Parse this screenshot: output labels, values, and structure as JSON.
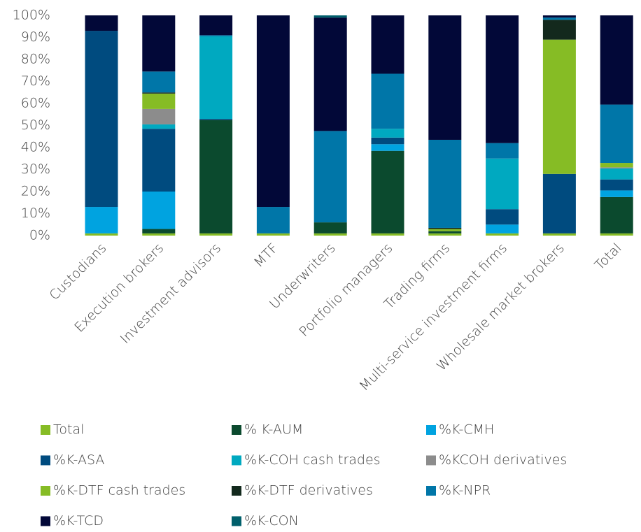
{
  "chart_data": {
    "type": "stacked_bar",
    "categories": [
      "Custodians",
      "Execution brokers",
      "Investment advisors",
      "MTF",
      "Underwriters",
      "Portfolio managers",
      "Trading firms",
      "Multi-service investment firms",
      "Wholesale market brokers",
      "Total"
    ],
    "series": [
      {
        "name": "Total",
        "color": "#86bc25",
        "values": [
          1,
          1,
          1,
          1,
          1,
          1,
          1,
          1,
          1,
          1
        ]
      },
      {
        "name": "% K-AUM",
        "color": "#0b4a2e",
        "values": [
          0,
          2,
          51.5,
          0,
          5,
          37.5,
          1,
          0,
          0,
          16.5
        ]
      },
      {
        "name": "%K-CMH",
        "color": "#00a3e0",
        "values": [
          12,
          17,
          0,
          0,
          0,
          3,
          0,
          4,
          0,
          3
        ]
      },
      {
        "name": "%K-ASA",
        "color": "#004b7f",
        "values": [
          80,
          28.5,
          0.5,
          0,
          0,
          3,
          0,
          7,
          27,
          5
        ]
      },
      {
        "name": "%K-COH cash trades",
        "color": "#00a9c0",
        "values": [
          0,
          2,
          37.5,
          0,
          0,
          4,
          0,
          23,
          0,
          5
        ]
      },
      {
        "name": "%KCOH derivatives",
        "color": "#8c8c8c",
        "values": [
          0,
          7,
          0,
          0,
          0,
          0,
          0,
          0,
          0,
          0.5
        ]
      },
      {
        "name": "%K-DTF cash trades",
        "color": "#86bc25",
        "values": [
          0,
          7,
          0,
          0,
          0,
          0,
          1,
          0,
          61,
          2
        ]
      },
      {
        "name": "%K-DTF derivatives",
        "color": "#13291d",
        "values": [
          0,
          0.5,
          0,
          0,
          0,
          0,
          0.5,
          0,
          9,
          0
        ]
      },
      {
        "name": "%K-NPR",
        "color": "#0076a8",
        "values": [
          0,
          9.5,
          0.5,
          12,
          41.5,
          25,
          40,
          7,
          1,
          26.5
        ]
      },
      {
        "name": "%K-TCD",
        "color": "#020838",
        "values": [
          7,
          25.5,
          9,
          87,
          51.5,
          26.5,
          56.5,
          58,
          1,
          40.5
        ]
      },
      {
        "name": "%K-CON",
        "color": "#005f6b",
        "values": [
          0,
          0,
          0,
          0,
          1,
          0,
          0,
          0,
          0,
          0
        ]
      }
    ],
    "ylim": [
      0,
      100
    ],
    "yticks": [
      {
        "value": 0,
        "label": "0%"
      },
      {
        "value": 10,
        "label": "10%"
      },
      {
        "value": 20,
        "label": "20%"
      },
      {
        "value": 30,
        "label": "30%"
      },
      {
        "value": 40,
        "label": "40%"
      },
      {
        "value": 50,
        "label": "50%"
      },
      {
        "value": 60,
        "label": "60%"
      },
      {
        "value": 70,
        "label": "70%"
      },
      {
        "value": 80,
        "label": "80%"
      },
      {
        "value": 90,
        "label": "90%"
      },
      {
        "value": 100,
        "label": "100%"
      }
    ],
    "legend": "bottom"
  }
}
